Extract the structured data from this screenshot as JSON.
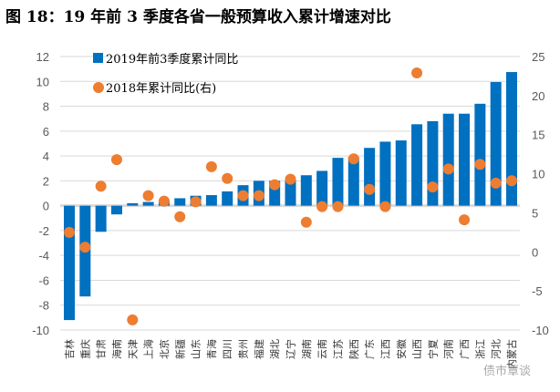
{
  "title": "图 18：19 年前 3 季度各省一般预算收入累计增速对比",
  "watermark": "债市覃谈",
  "chart_data": {
    "type": "bar",
    "title": "图 18：19 年前 3 季度各省一般预算收入累计增速对比",
    "categories": [
      "吉林",
      "重庆",
      "甘肃",
      "海南",
      "天津",
      "上海",
      "北京",
      "新疆",
      "山东",
      "青海",
      "四川",
      "贵州",
      "福建",
      "湖北",
      "辽宁",
      "湖南",
      "云南",
      "江苏",
      "陕西",
      "广东",
      "江西",
      "安徽",
      "山西",
      "宁夏",
      "河南",
      "广西",
      "浙江",
      "河北",
      "内蒙古"
    ],
    "series": [
      {
        "name": "2019年前3季度累计同比",
        "type": "bar",
        "axis": "left",
        "color": "#0070C0",
        "values": [
          -9.2,
          -7.3,
          -2.1,
          -0.7,
          0.2,
          0.3,
          0.4,
          0.6,
          0.8,
          0.85,
          1.15,
          1.65,
          2.0,
          2.0,
          2.2,
          2.45,
          2.8,
          3.85,
          3.9,
          4.65,
          5.15,
          5.25,
          6.55,
          6.8,
          7.4,
          7.4,
          8.2,
          9.95,
          10.75
        ]
      },
      {
        "name": "2018年累计同比(右)",
        "type": "scatter",
        "axis": "right",
        "color": "#ED7D31",
        "values": [
          2.5,
          0.6,
          8.4,
          11.8,
          -8.7,
          7.2,
          6.5,
          4.5,
          6.4,
          10.9,
          9.4,
          7.2,
          7.2,
          8.6,
          9.3,
          3.8,
          5.8,
          5.8,
          11.9,
          8.0,
          5.8,
          null,
          22.9,
          8.3,
          10.6,
          4.1,
          11.2,
          8.8,
          9.1
        ]
      }
    ],
    "left_axis": {
      "ylim": [
        -10,
        12
      ],
      "ticks": [
        "12",
        "10",
        "8",
        "6",
        "4",
        "2",
        "0",
        "-2",
        "-4",
        "-6",
        "-8",
        "-10"
      ]
    },
    "right_axis": {
      "ylim": [
        -10,
        25
      ],
      "ticks": [
        "25",
        "20",
        "15",
        "10",
        "5",
        "0",
        "-5",
        "-10"
      ]
    },
    "grid": true,
    "legend": "top-left"
  }
}
